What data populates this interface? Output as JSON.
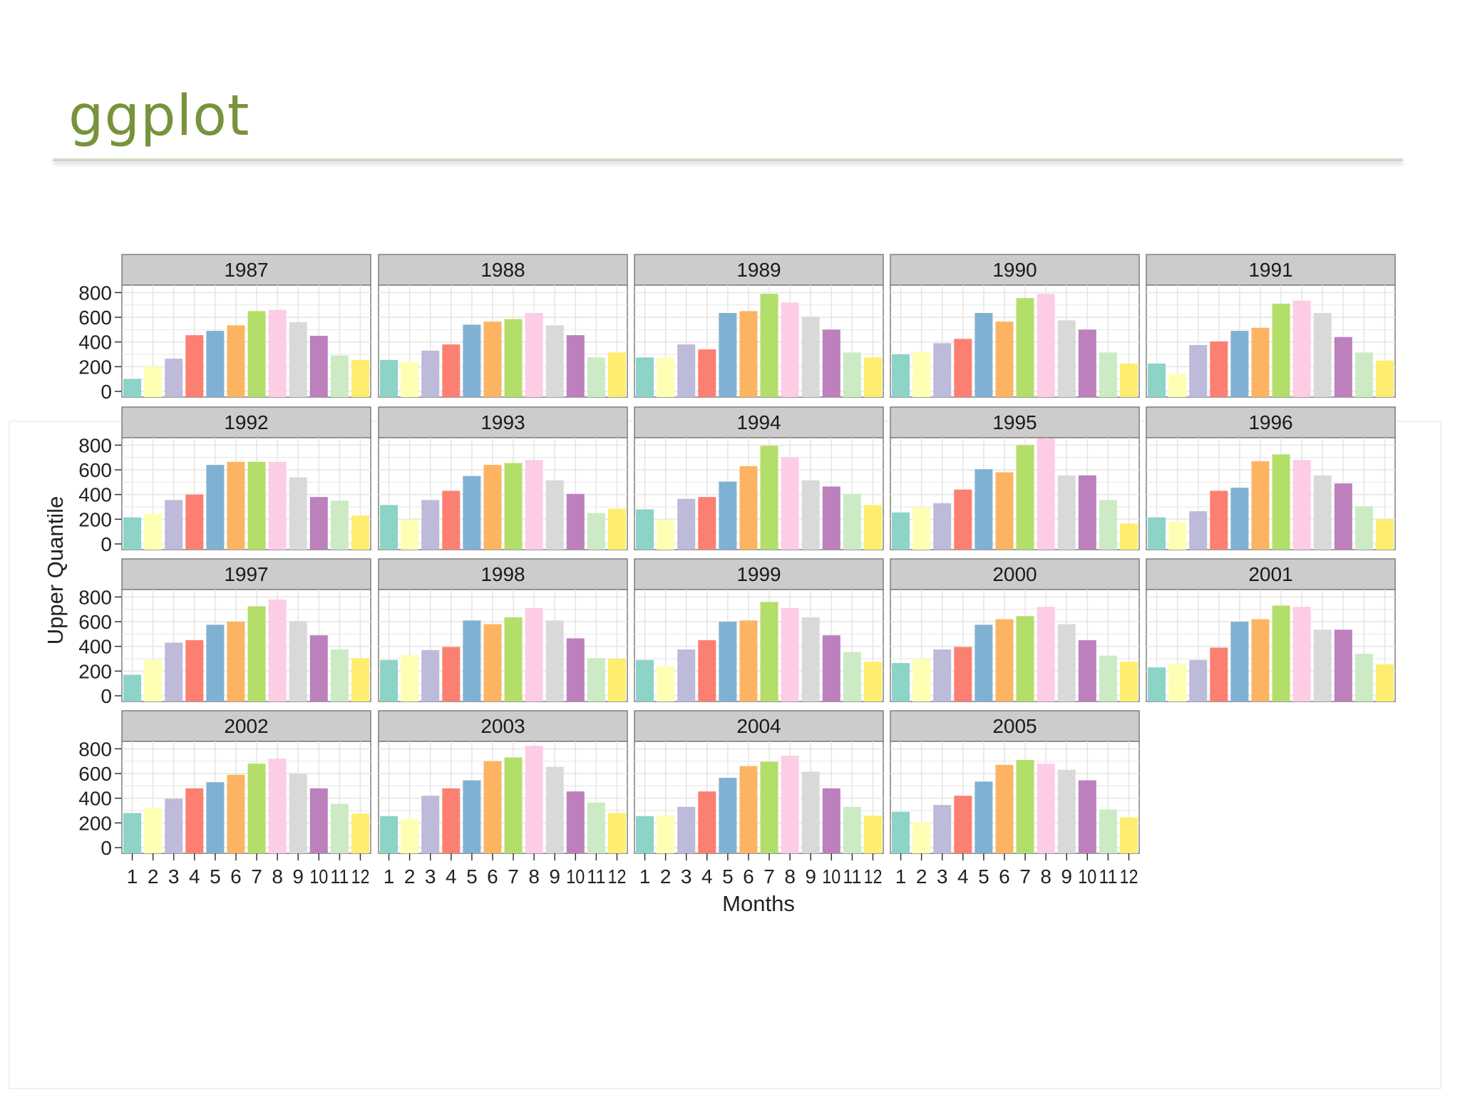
{
  "slide": {
    "title": "ggplot"
  },
  "chart_data": {
    "type": "bar",
    "facet_by": "year",
    "facet_layout": "5 columns, 4 rows",
    "xlabel": "Months",
    "ylabel": "Upper Quantile",
    "ylim": [
      0,
      860
    ],
    "yticks": [
      0,
      200,
      400,
      600,
      800
    ],
    "categories": [
      "1",
      "2",
      "3",
      "4",
      "5",
      "6",
      "7",
      "8",
      "9",
      "10",
      "11",
      "12"
    ],
    "month_colors": [
      "#8dd3c7",
      "#ffffb3",
      "#bebada",
      "#fb8072",
      "#80b1d3",
      "#fdb462",
      "#b3de69",
      "#fccde5",
      "#d9d9d9",
      "#bc80bd",
      "#ccebc5",
      "#ffed6f"
    ],
    "grid": true,
    "legend": "none",
    "strip_color": "#cccccc",
    "panel_grid_color": "#e6e6e6",
    "panels": [
      {
        "year": "1987",
        "values": [
          100,
          200,
          265,
          455,
          490,
          535,
          650,
          660,
          560,
          450,
          290,
          255
        ]
      },
      {
        "year": "1988",
        "values": [
          255,
          240,
          330,
          380,
          540,
          565,
          585,
          635,
          535,
          455,
          275,
          315
        ]
      },
      {
        "year": "1989",
        "values": [
          275,
          275,
          380,
          340,
          635,
          650,
          790,
          720,
          605,
          500,
          315,
          275
        ]
      },
      {
        "year": "1990",
        "values": [
          300,
          320,
          390,
          425,
          635,
          565,
          755,
          790,
          575,
          500,
          315,
          225
        ]
      },
      {
        "year": "1991",
        "values": [
          225,
          140,
          375,
          405,
          490,
          515,
          710,
          735,
          635,
          440,
          315,
          250
        ]
      },
      {
        "year": "1992",
        "values": [
          215,
          245,
          355,
          400,
          640,
          665,
          665,
          665,
          540,
          380,
          350,
          230
        ]
      },
      {
        "year": "1993",
        "values": [
          315,
          195,
          355,
          430,
          550,
          640,
          655,
          680,
          515,
          405,
          250,
          285
        ]
      },
      {
        "year": "1994",
        "values": [
          280,
          195,
          365,
          380,
          505,
          630,
          795,
          705,
          515,
          465,
          405,
          315
        ]
      },
      {
        "year": "1995",
        "values": [
          255,
          295,
          330,
          440,
          605,
          580,
          800,
          855,
          555,
          555,
          355,
          165
        ]
      },
      {
        "year": "1996",
        "values": [
          215,
          180,
          265,
          430,
          455,
          670,
          725,
          680,
          555,
          490,
          305,
          200
        ]
      },
      {
        "year": "1997",
        "values": [
          170,
          290,
          430,
          450,
          575,
          600,
          725,
          780,
          605,
          490,
          375,
          305
        ]
      },
      {
        "year": "1998",
        "values": [
          290,
          330,
          370,
          395,
          610,
          580,
          635,
          710,
          610,
          465,
          305,
          300
        ]
      },
      {
        "year": "1999",
        "values": [
          290,
          240,
          375,
          450,
          600,
          610,
          760,
          710,
          635,
          490,
          355,
          275
        ]
      },
      {
        "year": "2000",
        "values": [
          265,
          300,
          375,
          395,
          575,
          620,
          645,
          720,
          580,
          450,
          325,
          275
        ]
      },
      {
        "year": "2001",
        "values": [
          230,
          260,
          290,
          390,
          600,
          620,
          730,
          720,
          535,
          535,
          340,
          255
        ]
      },
      {
        "year": "2002",
        "values": [
          280,
          320,
          395,
          480,
          530,
          590,
          680,
          720,
          600,
          480,
          355,
          275
        ]
      },
      {
        "year": "2003",
        "values": [
          255,
          230,
          420,
          480,
          545,
          700,
          730,
          825,
          655,
          455,
          365,
          280
        ]
      },
      {
        "year": "2004",
        "values": [
          255,
          260,
          330,
          455,
          565,
          660,
          695,
          745,
          615,
          480,
          330,
          260
        ]
      },
      {
        "year": "2005",
        "values": [
          290,
          205,
          345,
          420,
          535,
          670,
          710,
          680,
          630,
          545,
          310,
          245
        ]
      }
    ]
  }
}
